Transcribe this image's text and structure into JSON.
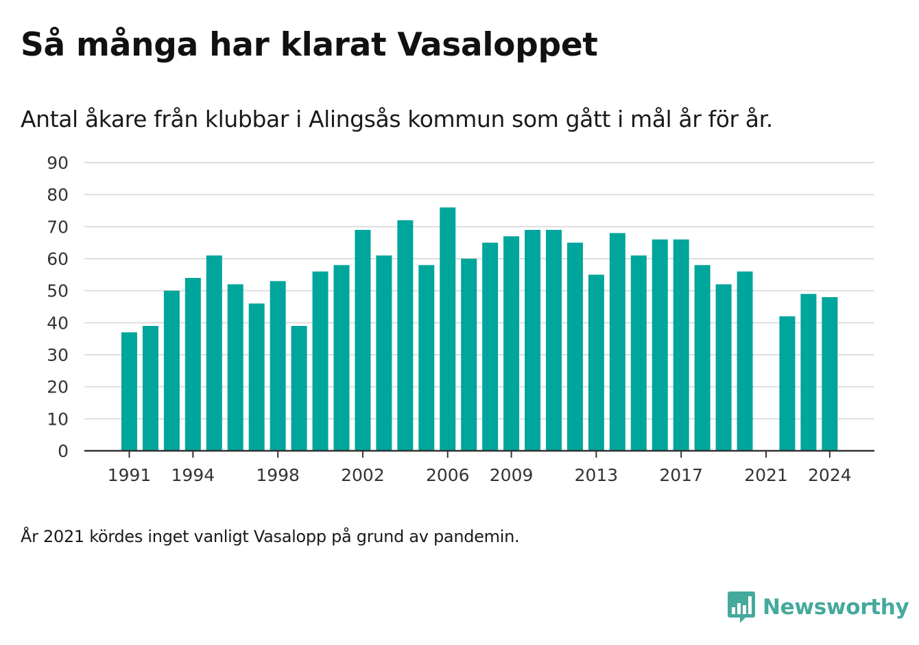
{
  "title": "Så många har klarat Vasaloppet",
  "subtitle": "Antal åkare från klubbar i Alingsås kommun som gått i mål år för år.",
  "footnote": "År 2021 kördes inget vanligt Vasalopp på grund av pandemin.",
  "brand": {
    "name": "Newsworthy",
    "logo_icon": "bar-chart-speech-bubble-icon",
    "color": "#45a99c"
  },
  "colors": {
    "bar": "#00a59b",
    "grid": "#dddddd",
    "axis": "#333333"
  },
  "chart_data": {
    "type": "bar",
    "categories": [
      1991,
      1992,
      1993,
      1994,
      1995,
      1996,
      1997,
      1998,
      1999,
      2000,
      2001,
      2002,
      2003,
      2004,
      2005,
      2006,
      2007,
      2008,
      2009,
      2010,
      2011,
      2012,
      2013,
      2014,
      2015,
      2016,
      2017,
      2018,
      2019,
      2020,
      2021,
      2022,
      2023,
      2024
    ],
    "values": [
      37,
      39,
      50,
      54,
      61,
      52,
      46,
      53,
      39,
      56,
      58,
      69,
      61,
      72,
      58,
      76,
      60,
      65,
      67,
      69,
      69,
      65,
      55,
      68,
      61,
      66,
      66,
      58,
      52,
      56,
      null,
      42,
      49,
      48
    ],
    "x_tick_labels": [
      "1991",
      "1994",
      "1998",
      "2002",
      "2006",
      "2009",
      "2013",
      "2017",
      "2021",
      "2024"
    ],
    "y_ticks": [
      0,
      10,
      20,
      30,
      40,
      50,
      60,
      70,
      80,
      90
    ],
    "ylim": [
      0,
      90
    ],
    "grid": true,
    "legend": "none",
    "xlabel": "",
    "ylabel": ""
  }
}
